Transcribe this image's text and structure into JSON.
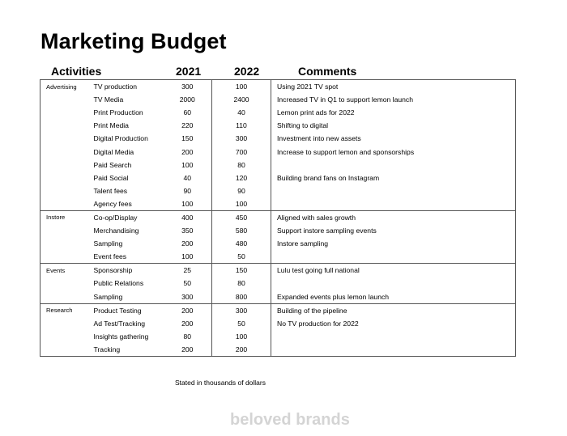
{
  "title": "Marketing Budget",
  "headers": {
    "activities": "Activities",
    "year1": "2021",
    "year2": "2022",
    "comments": "Comments"
  },
  "rows": [
    {
      "category": "Advertising",
      "activity": "TV production",
      "y2021": "300",
      "y2022": "100",
      "comment": "Using 2021 TV spot"
    },
    {
      "category": "",
      "activity": "TV Media",
      "y2021": "2000",
      "y2022": "2400",
      "comment": "Increased TV in Q1 to support lemon launch"
    },
    {
      "category": "",
      "activity": "Print Production",
      "y2021": "60",
      "y2022": "40",
      "comment": "Lemon print ads for 2022"
    },
    {
      "category": "",
      "activity": "Print Media",
      "y2021": "220",
      "y2022": "110",
      "comment": "Shifting to digital"
    },
    {
      "category": "",
      "activity": "Digital Production",
      "y2021": "150",
      "y2022": "300",
      "comment": "Investment into new assets"
    },
    {
      "category": "",
      "activity": "Digital Media",
      "y2021": "200",
      "y2022": "700",
      "comment": "Increase to support lemon and sponsorships"
    },
    {
      "category": "",
      "activity": "Paid Search",
      "y2021": "100",
      "y2022": "80",
      "comment": ""
    },
    {
      "category": "",
      "activity": "Paid Social",
      "y2021": "40",
      "y2022": "120",
      "comment": "Building brand fans on Instagram"
    },
    {
      "category": "",
      "activity": "Talent fees",
      "y2021": "90",
      "y2022": "90",
      "comment": ""
    },
    {
      "category": "",
      "activity": "Agency fees",
      "y2021": "100",
      "y2022": "100",
      "comment": ""
    },
    {
      "category": "Instore",
      "activity": "Co-op/Display",
      "y2021": "400",
      "y2022": "450",
      "comment": "Aligned with sales growth"
    },
    {
      "category": "",
      "activity": "Merchandising",
      "y2021": "350",
      "y2022": "580",
      "comment": "Support instore sampling events"
    },
    {
      "category": "",
      "activity": "Sampling",
      "y2021": "200",
      "y2022": "480",
      "comment": "Instore sampling"
    },
    {
      "category": "",
      "activity": "Event fees",
      "y2021": "100",
      "y2022": "50",
      "comment": ""
    },
    {
      "category": "Events",
      "activity": "Sponsorship",
      "y2021": "25",
      "y2022": "150",
      "comment": "Lulu test going full national"
    },
    {
      "category": "",
      "activity": "Public Relations",
      "y2021": "50",
      "y2022": "80",
      "comment": ""
    },
    {
      "category": "",
      "activity": "Sampling",
      "y2021": "300",
      "y2022": "800",
      "comment": "Expanded events plus lemon launch"
    },
    {
      "category": "Research",
      "activity": "Product Testing",
      "y2021": "200",
      "y2022": "300",
      "comment": "Building of the pipeline"
    },
    {
      "category": "",
      "activity": "Ad Test/Tracking",
      "y2021": "200",
      "y2022": "50",
      "comment": "No TV production for 2022"
    },
    {
      "category": "",
      "activity": "Insights gathering",
      "y2021": "80",
      "y2022": "100",
      "comment": ""
    },
    {
      "category": "",
      "activity": "Tracking",
      "y2021": "200",
      "y2022": "200",
      "comment": ""
    }
  ],
  "note": "Stated in thousands of dollars",
  "watermark": "beloved brands"
}
